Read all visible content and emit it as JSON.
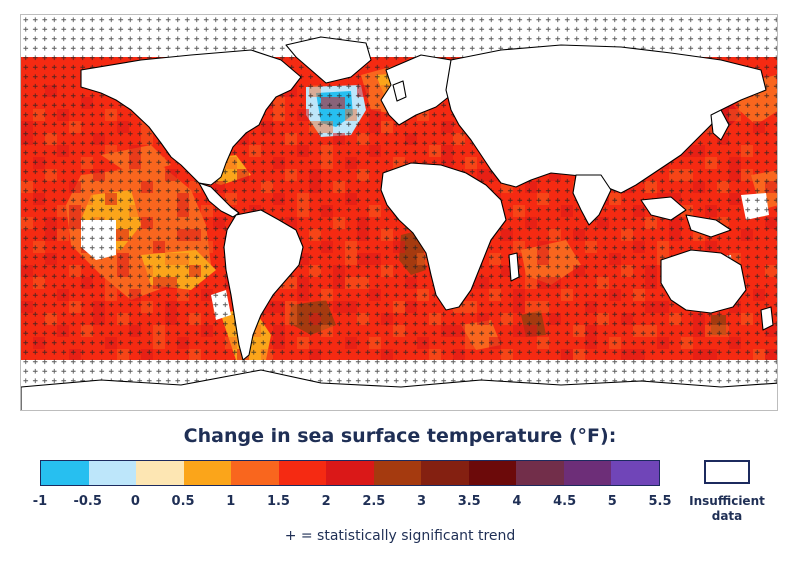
{
  "legend": {
    "title": "Change in sea surface temperature (°F):",
    "ticks": [
      "-1",
      "-0.5",
      "0",
      "0.5",
      "1",
      "1.5",
      "2",
      "2.5",
      "3",
      "3.5",
      "4",
      "4.5",
      "5",
      "5.5"
    ],
    "colors": [
      "#27bff0",
      "#bde6fa",
      "#fde6b3",
      "#fba51a",
      "#f9661e",
      "#f52a12",
      "#da1818",
      "#a53a0f",
      "#842011",
      "#6c0a0a",
      "#722e4a",
      "#6d2e78",
      "#7045b8"
    ],
    "insufficient_label": "Insufficient data",
    "significance_note": "+ = statistically significant trend"
  },
  "map": {
    "land_color": "#ffffff",
    "coastline_color": "#000000",
    "significance_marker": "+"
  }
}
